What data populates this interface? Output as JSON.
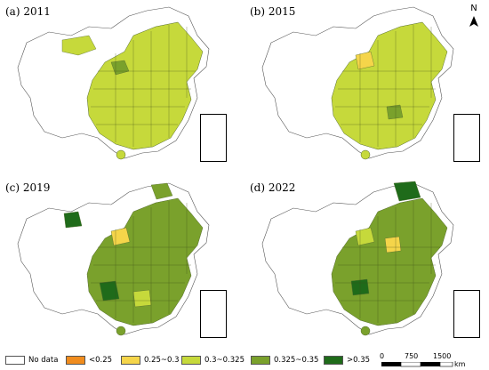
{
  "panels": [
    {
      "label": "(a) 2011"
    },
    {
      "label": "(b) 2015"
    },
    {
      "label": "(c) 2019"
    },
    {
      "label": "(d) 2022"
    }
  ],
  "north_label": "N",
  "legend": [
    {
      "label": "No data",
      "color": "#ffffff"
    },
    {
      "label": "<0.25",
      "color": "#f08c1e"
    },
    {
      "label": "0.25~0.3",
      "color": "#f5d54a"
    },
    {
      "label": "0.3~0.325",
      "color": "#c6d93b"
    },
    {
      "label": "0.325~0.35",
      "color": "#7aa12c"
    },
    {
      "label": ">0.35",
      "color": "#1f6b1a"
    }
  ],
  "scale": {
    "ticks": [
      "0",
      "750",
      "1500"
    ],
    "unit": "km"
  }
}
